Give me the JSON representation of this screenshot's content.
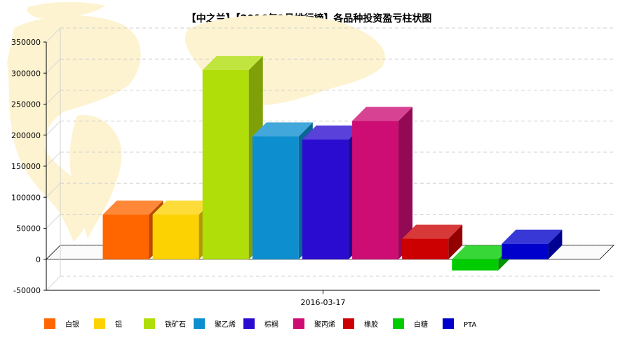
{
  "chart_data": {
    "type": "bar",
    "title": "【中之兰】【2016年2月排行榜】各品种投资盈亏柱状图",
    "categories": [
      "2016-03-17"
    ],
    "ylim": [
      -50000,
      350000
    ],
    "yticks": [
      -50000,
      0,
      50000,
      100000,
      150000,
      200000,
      250000,
      300000,
      350000
    ],
    "grid": true,
    "legend_position": "bottom",
    "series": [
      {
        "name": "白银",
        "color": "#ff6600",
        "values": [
          72000
        ]
      },
      {
        "name": "铝",
        "color": "#fcd202",
        "values": [
          72000
        ]
      },
      {
        "name": "铁矿石",
        "color": "#b0de09",
        "values": [
          305000
        ]
      },
      {
        "name": "聚乙烯",
        "color": "#0d8ecf",
        "values": [
          198000
        ]
      },
      {
        "name": "棕榈",
        "color": "#2a0cd0",
        "values": [
          193000
        ]
      },
      {
        "name": "聚丙烯",
        "color": "#cd0d74",
        "values": [
          223000
        ]
      },
      {
        "name": "橡胶",
        "color": "#cc0000",
        "values": [
          33000
        ]
      },
      {
        "name": "白糖",
        "color": "#00cc00",
        "values": [
          -18000
        ]
      },
      {
        "name": "PTA",
        "color": "#0000cc",
        "values": [
          25000
        ]
      }
    ]
  }
}
